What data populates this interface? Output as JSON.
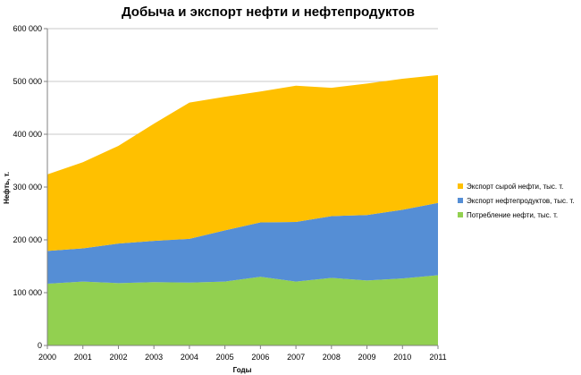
{
  "chart_data": {
    "type": "area",
    "stacked": true,
    "title": "Добыча и экспорт нефти и нефтепродуктов",
    "xlabel": "Годы",
    "ylabel": "Нефть, т.",
    "x": [
      "2000",
      "2001",
      "2002",
      "2003",
      "2004",
      "2005",
      "2006",
      "2007",
      "2008",
      "2009",
      "2010",
      "2011"
    ],
    "yticks": [
      "0",
      "100 000",
      "200 000",
      "300 000",
      "400 000",
      "500 000",
      "600 000"
    ],
    "ylim": [
      0,
      600000
    ],
    "grid": "horizontal",
    "legend_position": "right",
    "series": [
      {
        "name": "Потребление нефти, тыс. т.",
        "color": "#92D050",
        "values": [
          117000,
          121000,
          118000,
          120000,
          119000,
          121000,
          130000,
          121000,
          128000,
          123000,
          127000,
          133000
        ]
      },
      {
        "name": "Экспорт нефтепродуктов,  тыс. т.",
        "color": "#558ED5",
        "values": [
          62000,
          63000,
          75000,
          78000,
          83000,
          97000,
          103000,
          113000,
          117000,
          124000,
          130000,
          137000
        ]
      },
      {
        "name": "Экспорт сырой нефти, тыс. т.",
        "color": "#FFC000",
        "values": [
          145000,
          163000,
          185000,
          222000,
          258000,
          253000,
          248000,
          258000,
          243000,
          249000,
          248000,
          242000
        ]
      }
    ],
    "legend_order": [
      2,
      1,
      0
    ]
  }
}
